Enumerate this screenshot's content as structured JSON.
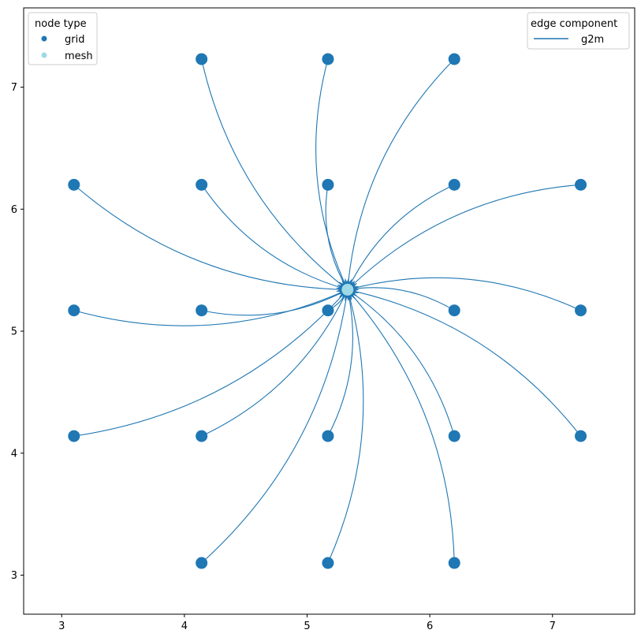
{
  "colors": {
    "grid_node": "#1f77b4",
    "mesh_node": "#9edae5",
    "edge": "#1f77b4"
  },
  "chart_data": {
    "type": "scatter",
    "title": "",
    "xlabel": "",
    "ylabel": "",
    "xlim": [
      2.69,
      7.67
    ],
    "ylim": [
      2.68,
      7.65
    ],
    "xticks": [
      3,
      4,
      5,
      6,
      7
    ],
    "yticks": [
      3,
      4,
      5,
      6,
      7
    ],
    "grid": false,
    "series": [
      {
        "name": "grid",
        "points": [
          [
            4.14,
            7.23
          ],
          [
            5.17,
            7.23
          ],
          [
            6.2,
            7.23
          ],
          [
            3.1,
            6.2
          ],
          [
            4.14,
            6.2
          ],
          [
            5.17,
            6.2
          ],
          [
            6.2,
            6.2
          ],
          [
            7.23,
            6.2
          ],
          [
            3.1,
            5.17
          ],
          [
            4.14,
            5.17
          ],
          [
            5.17,
            5.17
          ],
          [
            6.2,
            5.17
          ],
          [
            7.23,
            5.17
          ],
          [
            3.1,
            4.14
          ],
          [
            4.14,
            4.14
          ],
          [
            5.17,
            4.14
          ],
          [
            6.2,
            4.14
          ],
          [
            7.23,
            4.14
          ],
          [
            4.14,
            3.1
          ],
          [
            5.17,
            3.1
          ],
          [
            6.2,
            3.1
          ]
        ]
      },
      {
        "name": "mesh",
        "points": [
          [
            5.33,
            5.34
          ]
        ]
      }
    ],
    "edges": {
      "name": "g2m",
      "from": "grid",
      "to": [
        5.33,
        5.34
      ]
    },
    "legends": [
      {
        "title": "node type",
        "position": "top-left",
        "entries": [
          "grid",
          "mesh"
        ]
      },
      {
        "title": "edge component",
        "position": "top-right",
        "entries": [
          "g2m"
        ]
      }
    ]
  }
}
